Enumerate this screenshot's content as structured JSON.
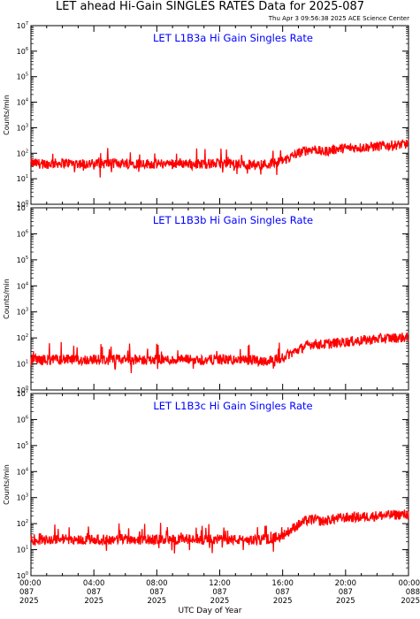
{
  "header": {
    "title": "LET ahead Hi-Gain SINGLES RATES Data for 2025-087",
    "timestamp": "Thu Apr  3 09:56:38 2025 ACE Science Center"
  },
  "colors": {
    "series": "#ff0000",
    "panel_title": "#0000ff",
    "axes": "#000000"
  },
  "chart_data": [
    {
      "type": "line",
      "title": "LET L1B3a Hi Gain Singles Rate",
      "ylabel": "Counts/min",
      "yscale": "log",
      "ylim": [
        1,
        10000000
      ],
      "xlim": [
        0,
        24
      ],
      "grid": false,
      "series": [
        {
          "x": [
            0,
            1,
            2,
            3,
            4,
            5,
            6,
            7,
            8,
            9,
            10,
            11,
            12,
            13,
            14,
            15,
            16,
            16.5,
            17,
            17.5,
            18,
            18.5,
            19,
            19.5,
            20,
            21,
            22,
            23,
            24
          ],
          "values": [
            40,
            38,
            42,
            40,
            38,
            40,
            42,
            40,
            38,
            40,
            40,
            38,
            40,
            38,
            36,
            38,
            50,
            70,
            100,
            130,
            150,
            110,
            130,
            150,
            160,
            170,
            185,
            205,
            230
          ]
        }
      ]
    },
    {
      "type": "line",
      "title": "LET L1B3b Hi Gain Singles Rate",
      "ylabel": "Counts/min",
      "yscale": "log",
      "ylim": [
        1,
        10000000
      ],
      "xlim": [
        0,
        24
      ],
      "grid": false,
      "series": [
        {
          "x": [
            0,
            1,
            2,
            3,
            4,
            5,
            6,
            7,
            8,
            9,
            10,
            11,
            12,
            13,
            14,
            15,
            16,
            16.5,
            17,
            17.5,
            18,
            18.5,
            19,
            19.5,
            20,
            21,
            22,
            23,
            24
          ],
          "values": [
            15,
            14,
            15,
            14,
            15,
            14,
            15,
            14,
            15,
            14,
            15,
            14,
            15,
            14,
            14,
            13,
            18,
            25,
            35,
            50,
            60,
            55,
            60,
            65,
            70,
            80,
            90,
            100,
            105
          ]
        }
      ]
    },
    {
      "type": "line",
      "title": "LET L1B3c Hi Gain Singles Rate",
      "ylabel": "Counts/min",
      "yscale": "log",
      "ylim": [
        1,
        10000000
      ],
      "xlim": [
        0,
        24
      ],
      "grid": false,
      "series": [
        {
          "x": [
            0,
            1,
            2,
            3,
            4,
            5,
            6,
            7,
            8,
            9,
            10,
            11,
            12,
            13,
            14,
            15,
            16,
            16.5,
            17,
            17.5,
            18,
            18.5,
            19,
            19.5,
            20,
            21,
            22,
            23,
            24
          ],
          "values": [
            25,
            24,
            26,
            24,
            25,
            24,
            26,
            24,
            25,
            24,
            25,
            24,
            25,
            24,
            23,
            24,
            35,
            55,
            90,
            130,
            150,
            120,
            140,
            160,
            170,
            180,
            200,
            215,
            230
          ]
        }
      ]
    }
  ],
  "xaxis": {
    "title": "UTC Day of Year",
    "ticks": [
      {
        "time": "00:00",
        "day": "087",
        "year": "2025"
      },
      {
        "time": "04:00",
        "day": "087",
        "year": "2025"
      },
      {
        "time": "08:00",
        "day": "087",
        "year": "2025"
      },
      {
        "time": "12:00",
        "day": "087",
        "year": "2025"
      },
      {
        "time": "16:00",
        "day": "087",
        "year": "2025"
      },
      {
        "time": "20:00",
        "day": "087",
        "year": "2025"
      },
      {
        "time": "00:00",
        "day": "088",
        "year": "2025"
      }
    ]
  }
}
